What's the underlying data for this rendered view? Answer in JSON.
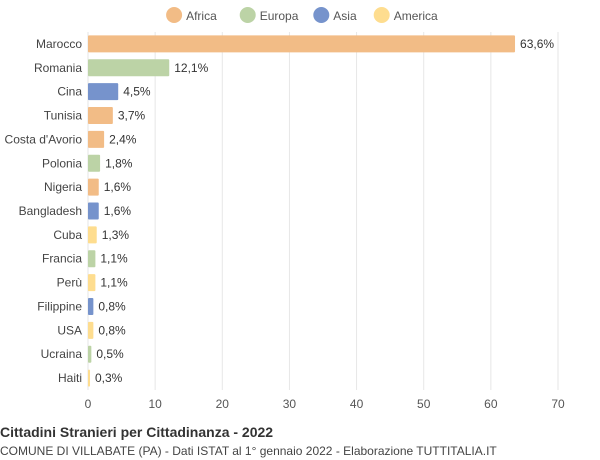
{
  "title": "Cittadini Stranieri per Cittadinanza - 2022",
  "subtitle": "COMUNE DI VILLABATE (PA) - Dati ISTAT al 1° gennaio 2022 - Elaborazione TUTTITALIA.IT",
  "legend": [
    {
      "name": "Africa",
      "color": "#f2bc86"
    },
    {
      "name": "Europa",
      "color": "#bcd3a6"
    },
    {
      "name": "Asia",
      "color": "#7693cc"
    },
    {
      "name": "America",
      "color": "#fedd8f"
    }
  ],
  "chart_data": {
    "type": "bar",
    "orientation": "horizontal",
    "title": "Cittadini Stranieri per Cittadinanza - 2022",
    "xlim": [
      0,
      70
    ],
    "xticks": [
      0,
      10,
      20,
      30,
      40,
      50,
      60,
      70
    ],
    "grid": true,
    "legend_position": "top",
    "categories": [
      "Marocco",
      "Romania",
      "Cina",
      "Tunisia",
      "Costa d'Avorio",
      "Polonia",
      "Nigeria",
      "Bangladesh",
      "Cuba",
      "Francia",
      "Perù",
      "Filippine",
      "USA",
      "Ucraina",
      "Haiti"
    ],
    "values": [
      63.6,
      12.1,
      4.5,
      3.7,
      2.4,
      1.8,
      1.6,
      1.6,
      1.3,
      1.1,
      1.1,
      0.8,
      0.8,
      0.5,
      0.3
    ],
    "labels": [
      "63,6%",
      "12,1%",
      "4,5%",
      "3,7%",
      "2,4%",
      "1,8%",
      "1,6%",
      "1,6%",
      "1,3%",
      "1,1%",
      "1,1%",
      "0,8%",
      "0,8%",
      "0,5%",
      "0,3%"
    ],
    "groups": [
      "Africa",
      "Europa",
      "Asia",
      "Africa",
      "Africa",
      "Europa",
      "Africa",
      "Asia",
      "America",
      "Europa",
      "America",
      "Asia",
      "America",
      "Europa",
      "America"
    ]
  }
}
